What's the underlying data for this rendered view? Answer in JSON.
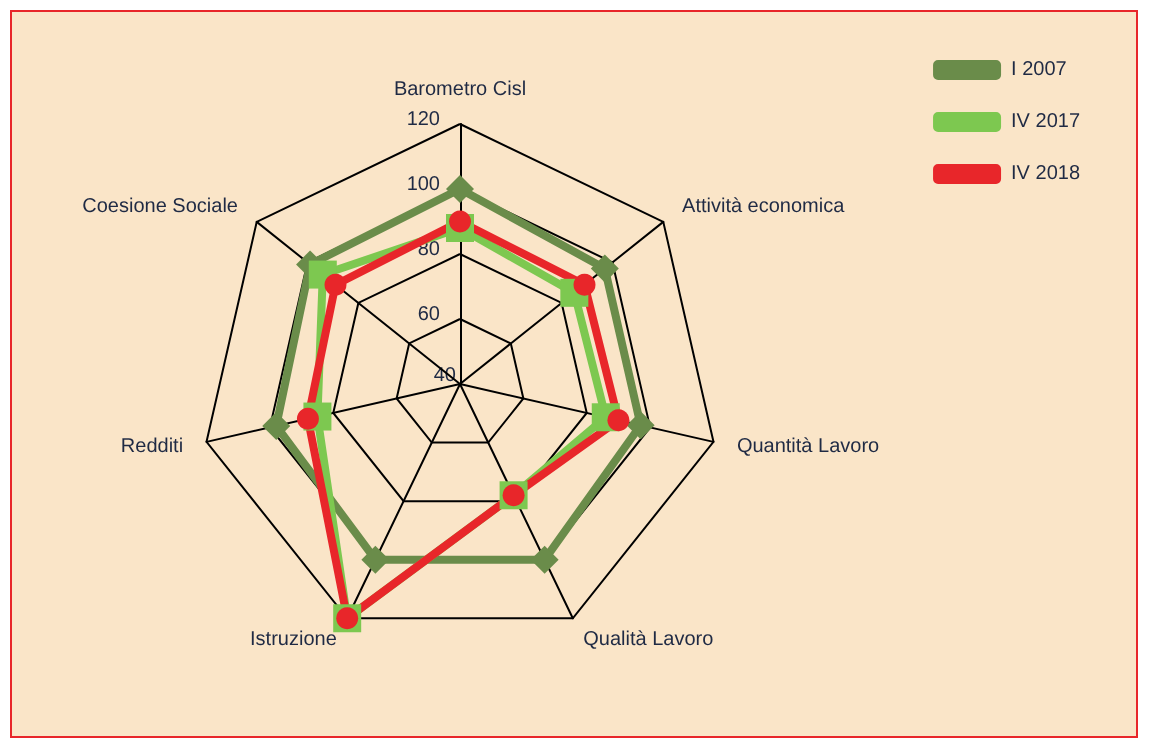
{
  "chart_data": {
    "type": "radar",
    "categories": [
      "Barometro Cisl",
      "Attività economica",
      "Quantità Lavoro",
      "Qualità Lavoro",
      "Istruzione",
      "Redditi",
      "Coesione Sociale"
    ],
    "series": [
      {
        "name": "I 2007",
        "color": "#6a8c4a",
        "marker": "diamond",
        "values": [
          100,
          97,
          97,
          100,
          100,
          98,
          99
        ]
      },
      {
        "name": "IV 2017",
        "color": "#7dc850",
        "marker": "square",
        "values": [
          88,
          85,
          86,
          78,
          120,
          85,
          94
        ]
      },
      {
        "name": "IV 2018",
        "color": "#e8262a",
        "marker": "circle",
        "values": [
          90,
          89,
          90,
          78,
          120,
          88,
          89
        ]
      }
    ],
    "ylim": [
      40,
      120
    ],
    "yticks": [
      40,
      60,
      80,
      100,
      120
    ],
    "grid": true,
    "legend": "top right"
  }
}
